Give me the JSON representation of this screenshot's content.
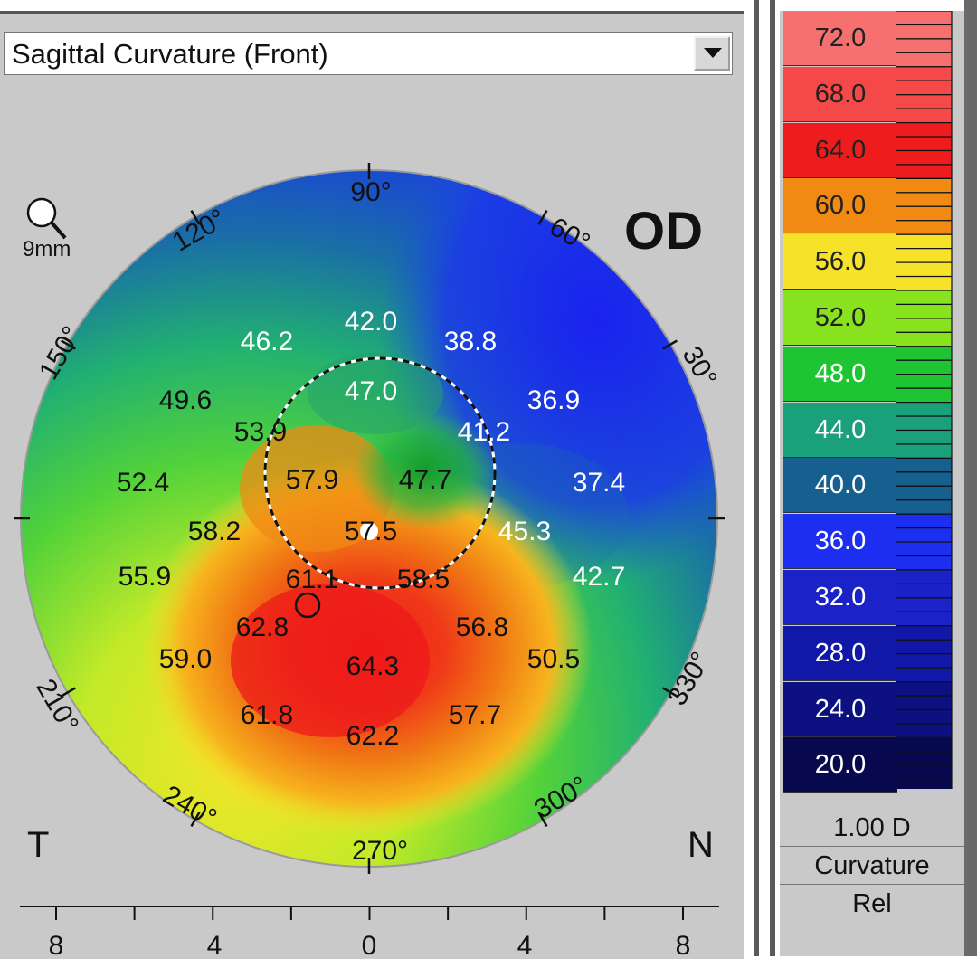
{
  "header": {
    "view_select_value": "Sagittal Curvature (Front)"
  },
  "map": {
    "eye": "OD",
    "zoom_label": "9mm",
    "temporal_label": "T",
    "nasal_label": "N",
    "angle_labels": [
      "90°",
      "60°",
      "30°",
      "330°",
      "300°",
      "270°",
      "240°",
      "210°",
      "150°",
      "120°"
    ],
    "central_circle_value": "57.5",
    "values": [
      "42.0",
      "46.2",
      "38.8",
      "47.0",
      "36.9",
      "49.6",
      "53.9",
      "41.2",
      "52.4",
      "57.9",
      "47.7",
      "37.4",
      "58.2",
      "45.3",
      "55.9",
      "61.1",
      "58.5",
      "42.7",
      "62.8",
      "56.8",
      "59.0",
      "64.3",
      "50.5",
      "61.8",
      "57.7",
      "62.2"
    ],
    "ruler_labels": [
      "8",
      "4",
      "0",
      "4",
      "8"
    ]
  },
  "scale": {
    "levels": [
      "72.0",
      "68.0",
      "64.0",
      "60.0",
      "56.0",
      "52.0",
      "48.0",
      "44.0",
      "40.0",
      "36.0",
      "32.0",
      "28.0",
      "24.0",
      "20.0"
    ],
    "level_colors": [
      "#f77070",
      "#f54848",
      "#ee1c1c",
      "#f08a12",
      "#f7e22a",
      "#88e21e",
      "#1ec432",
      "#1aa07a",
      "#15608e",
      "#1c2ef0",
      "#1a22c8",
      "#1118a8",
      "#0c1080",
      "#08084e"
    ],
    "step": "1.00 D",
    "type": "Curvature",
    "mode": "Rel"
  }
}
